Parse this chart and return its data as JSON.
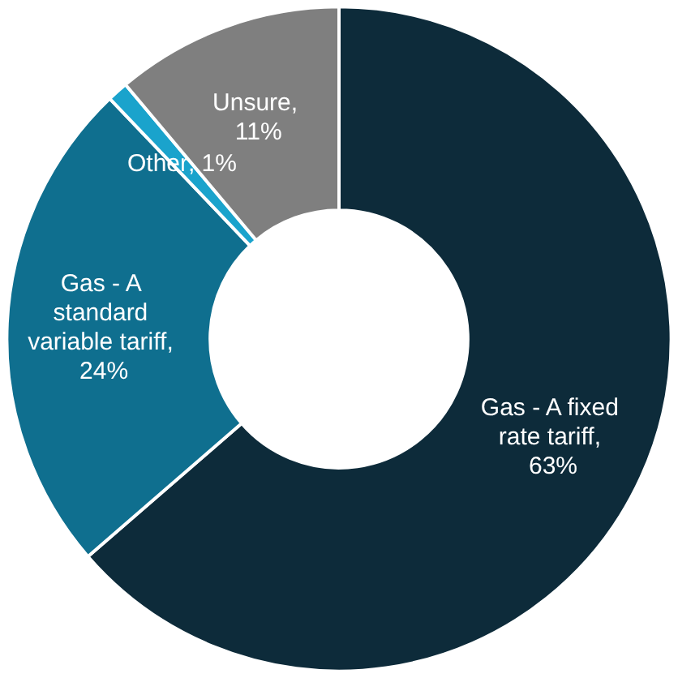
{
  "chart_data": {
    "type": "donut",
    "categories": [
      "Gas - A fixed rate tariff",
      "Gas - A standard variable tariff",
      "Other",
      "Unsure"
    ],
    "values": [
      63,
      24,
      1,
      11
    ],
    "value_labels": [
      ", 63%",
      ", 24%",
      ", 1%",
      ", 11%"
    ],
    "colors": [
      "#0d2b3a",
      "#0f6f8f",
      "#1aa3cc",
      "#7f7f7f"
    ]
  }
}
